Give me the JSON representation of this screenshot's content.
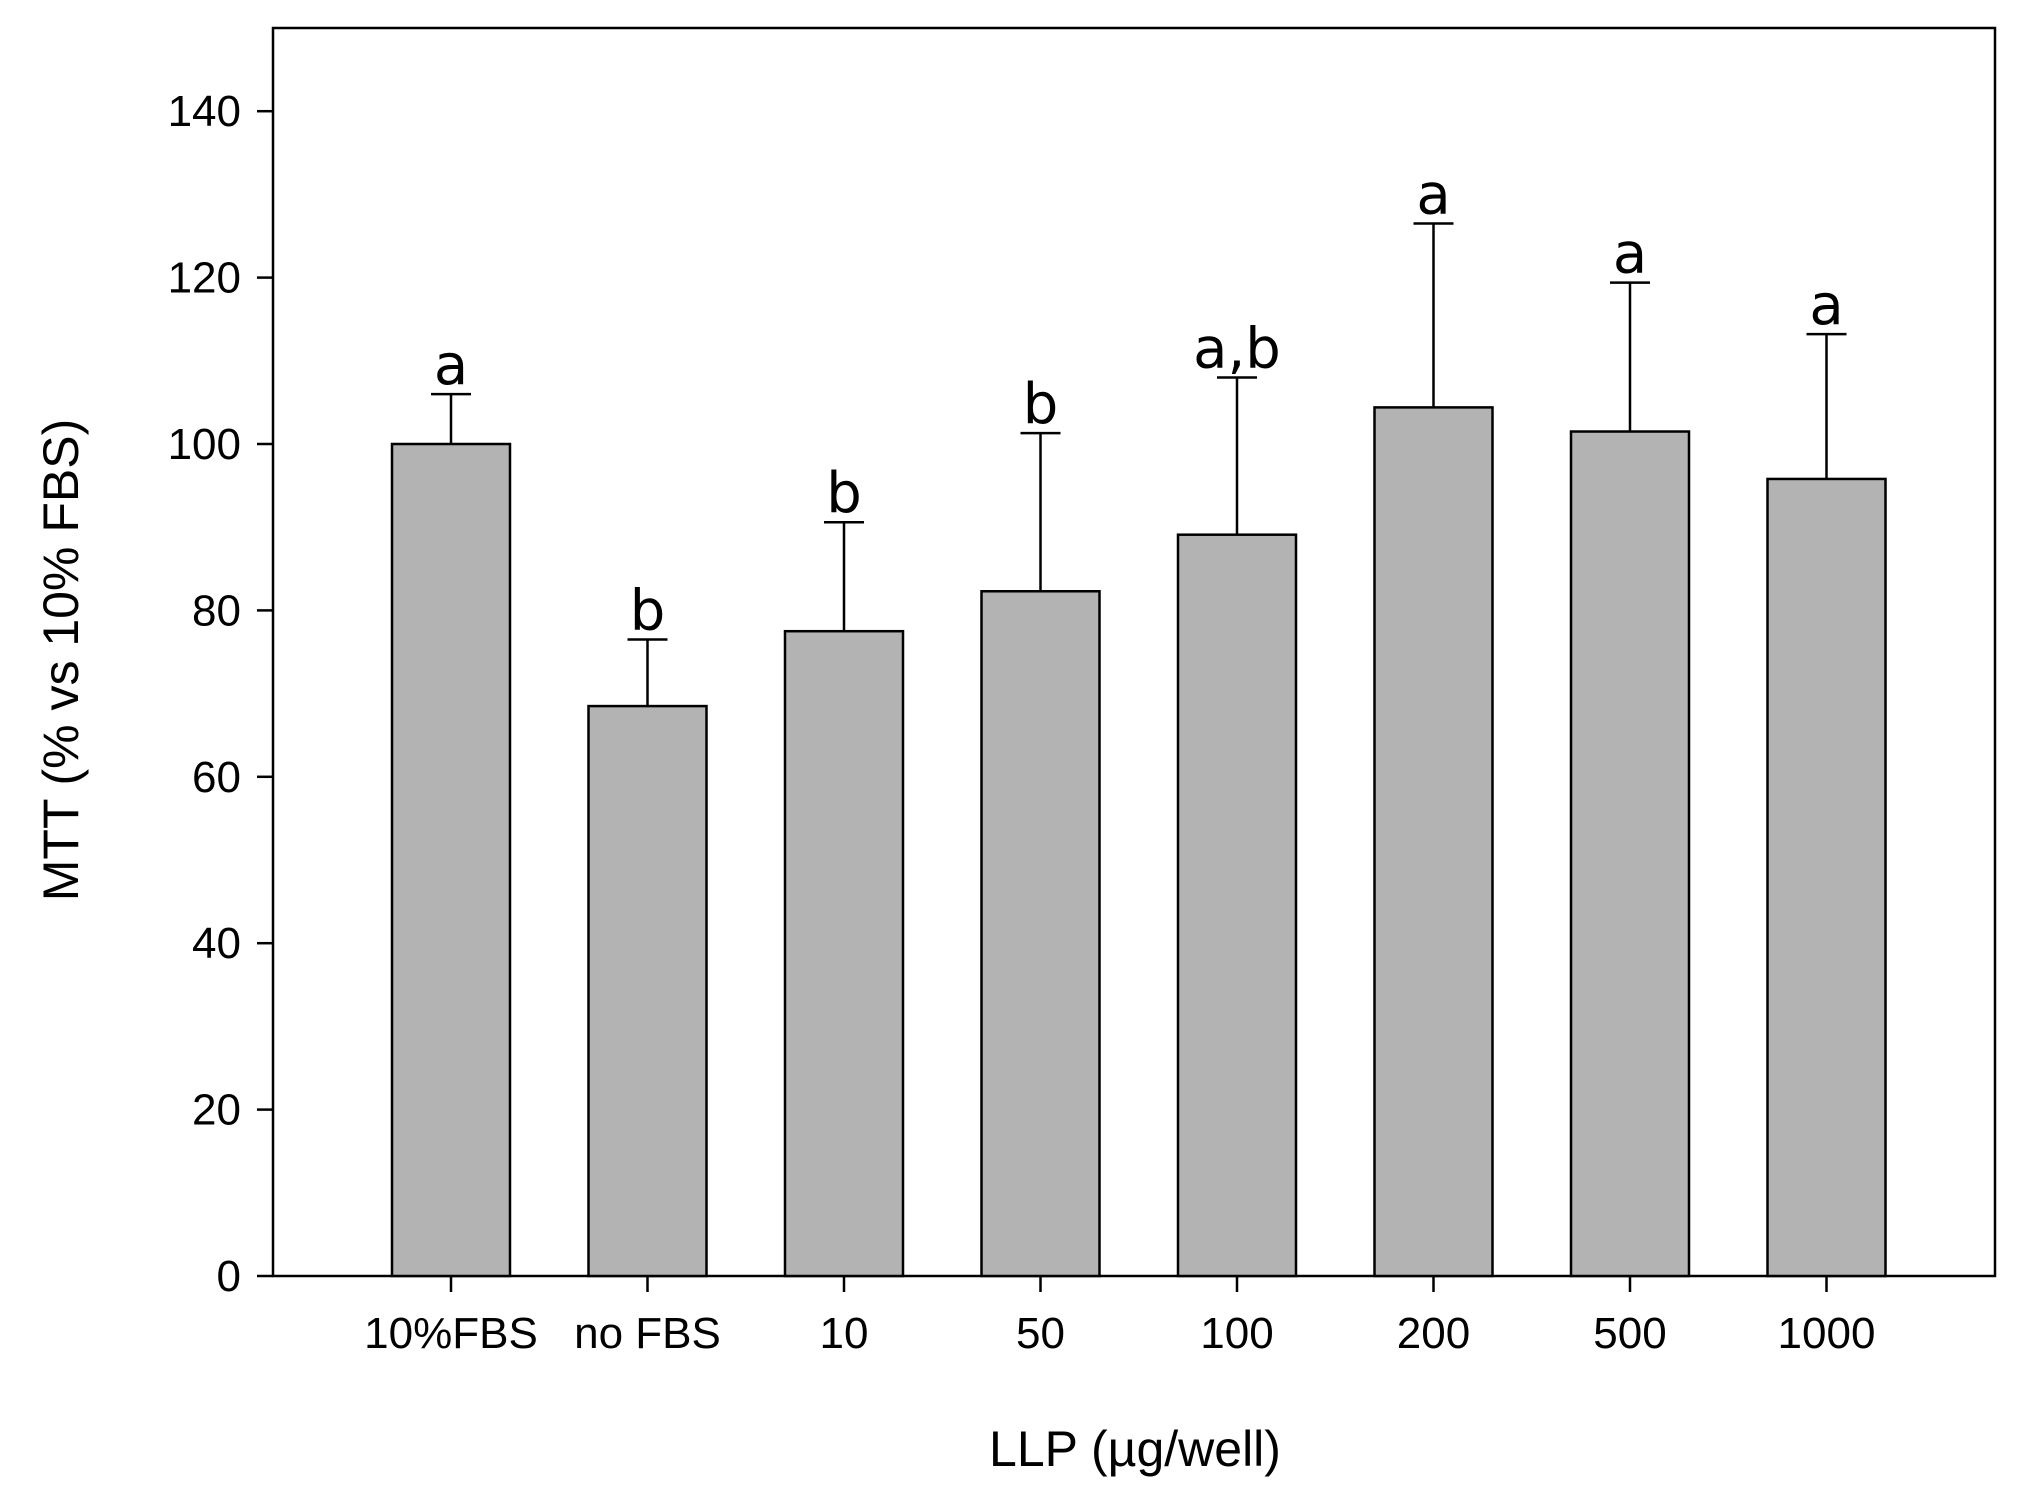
{
  "chart_data": {
    "type": "bar",
    "title": "",
    "xlabel": "LLP (µg/well)",
    "ylabel": "MTT (% vs 10% FBS)",
    "ylim": [
      0,
      150
    ],
    "yticks": [
      0,
      20,
      40,
      60,
      80,
      100,
      120,
      140
    ],
    "grid": false,
    "categories": [
      "10%FBS",
      "no FBS",
      "10",
      "50",
      "100",
      "200",
      "500",
      "1000"
    ],
    "values": [
      100,
      68.5,
      77.5,
      82.3,
      89.1,
      104.4,
      101.5,
      95.8
    ],
    "error_upper": [
      6.0,
      8.0,
      13.1,
      19.0,
      18.9,
      22.1,
      17.9,
      17.4
    ],
    "significance_labels": [
      "a",
      "b",
      "b",
      "b",
      "a,b",
      "a",
      "a",
      "a"
    ],
    "bar_color": "#b3b3b3",
    "edge_color": "#000000"
  }
}
